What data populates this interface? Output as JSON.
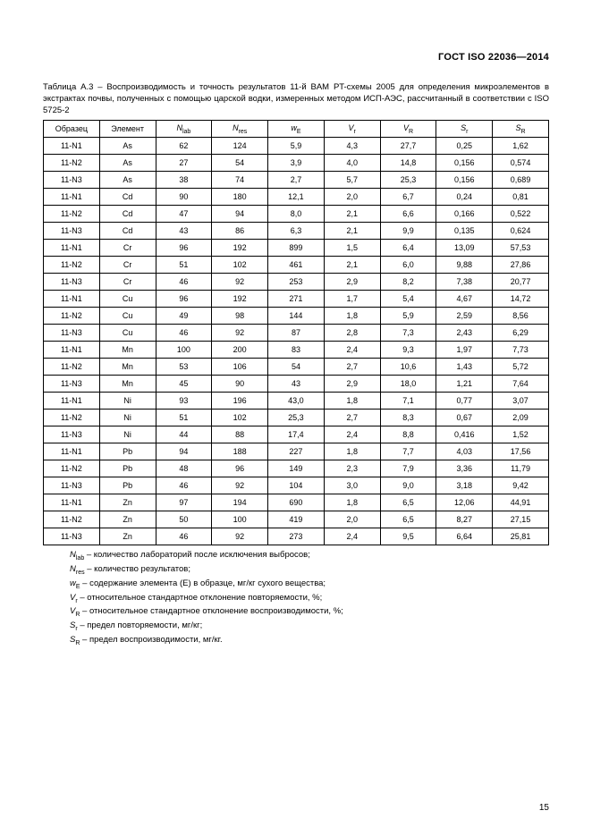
{
  "header": "ГОСТ ISO 22036—2014",
  "caption": "Таблица А.3 – Воспроизводимость и точность результатов 11-й BAM PT-схемы 2005 для определения микроэлементов в экстрактах почвы, полученных с помощью царской водки, измеренных методом ИСП-АЭС, рассчитанный в соответствии с ISO 5725-2",
  "table": {
    "columns": [
      "Образец",
      "Элемент",
      "Nlab",
      "Nres",
      "wE",
      "Vr",
      "VR",
      "Sr",
      "SR"
    ],
    "col_sub": [
      "",
      "",
      "lab",
      "res",
      "E",
      "r",
      "R",
      "r",
      "R"
    ],
    "col_base": [
      "Образец",
      "Элемент",
      "N",
      "N",
      "w",
      "V",
      "V",
      "S",
      "S"
    ],
    "col_italic": [
      false,
      false,
      true,
      true,
      true,
      true,
      true,
      true,
      true
    ],
    "rows": [
      [
        "11-N1",
        "As",
        "62",
        "124",
        "5,9",
        "4,3",
        "27,7",
        "0,25",
        "1,62"
      ],
      [
        "11-N2",
        "As",
        "27",
        "54",
        "3,9",
        "4,0",
        "14,8",
        "0,156",
        "0,574"
      ],
      [
        "11-N3",
        "As",
        "38",
        "74",
        "2,7",
        "5,7",
        "25,3",
        "0,156",
        "0,689"
      ],
      [
        "11-N1",
        "Cd",
        "90",
        "180",
        "12,1",
        "2,0",
        "6,7",
        "0,24",
        "0,81"
      ],
      [
        "11-N2",
        "Cd",
        "47",
        "94",
        "8,0",
        "2,1",
        "6,6",
        "0,166",
        "0,522"
      ],
      [
        "11-N3",
        "Cd",
        "43",
        "86",
        "6,3",
        "2,1",
        "9,9",
        "0,135",
        "0,624"
      ],
      [
        "11-N1",
        "Cr",
        "96",
        "192",
        "899",
        "1,5",
        "6,4",
        "13,09",
        "57,53"
      ],
      [
        "11-N2",
        "Cr",
        "51",
        "102",
        "461",
        "2,1",
        "6,0",
        "9,88",
        "27,86"
      ],
      [
        "11-N3",
        "Cr",
        "46",
        "92",
        "253",
        "2,9",
        "8,2",
        "7,38",
        "20,77"
      ],
      [
        "11-N1",
        "Cu",
        "96",
        "192",
        "271",
        "1,7",
        "5,4",
        "4,67",
        "14,72"
      ],
      [
        "11-N2",
        "Cu",
        "49",
        "98",
        "144",
        "1,8",
        "5,9",
        "2,59",
        "8,56"
      ],
      [
        "11-N3",
        "Cu",
        "46",
        "92",
        "87",
        "2,8",
        "7,3",
        "2,43",
        "6,29"
      ],
      [
        "11-N1",
        "Mn",
        "100",
        "200",
        "83",
        "2,4",
        "9,3",
        "1,97",
        "7,73"
      ],
      [
        "11-N2",
        "Mn",
        "53",
        "106",
        "54",
        "2,7",
        "10,6",
        "1,43",
        "5,72"
      ],
      [
        "11-N3",
        "Mn",
        "45",
        "90",
        "43",
        "2,9",
        "18,0",
        "1,21",
        "7,64"
      ],
      [
        "11-N1",
        "Ni",
        "93",
        "196",
        "43,0",
        "1,8",
        "7,1",
        "0,77",
        "3,07"
      ],
      [
        "11-N2",
        "Ni",
        "51",
        "102",
        "25,3",
        "2,7",
        "8,3",
        "0,67",
        "2,09"
      ],
      [
        "11-N3",
        "Ni",
        "44",
        "88",
        "17,4",
        "2,4",
        "8,8",
        "0,416",
        "1,52"
      ],
      [
        "11-N1",
        "Pb",
        "94",
        "188",
        "227",
        "1,8",
        "7,7",
        "4,03",
        "17,56"
      ],
      [
        "11-N2",
        "Pb",
        "48",
        "96",
        "149",
        "2,3",
        "7,9",
        "3,36",
        "11,79"
      ],
      [
        "11-N3",
        "Pb",
        "46",
        "92",
        "104",
        "3,0",
        "9,0",
        "3,18",
        "9,42"
      ],
      [
        "11-N1",
        "Zn",
        "97",
        "194",
        "690",
        "1,8",
        "6,5",
        "12,06",
        "44,91"
      ],
      [
        "11-N2",
        "Zn",
        "50",
        "100",
        "419",
        "2,0",
        "6,5",
        "8,27",
        "27,15"
      ],
      [
        "11-N3",
        "Zn",
        "46",
        "92",
        "273",
        "2,4",
        "9,5",
        "6,64",
        "25,81"
      ]
    ]
  },
  "legend": [
    {
      "sym": "N",
      "sub": "lab",
      "text": " – количество лабораторий после исключения выбросов;"
    },
    {
      "sym": "N",
      "sub": "res",
      "text": " – количество результатов;"
    },
    {
      "sym": "w",
      "sub": "E",
      "text": " – содержание элемента (Е) в образце, мг/кг сухого вещества;"
    },
    {
      "sym": "V",
      "sub": "r",
      "text": " – относительное стандартное отклонение повторяемости, %;"
    },
    {
      "sym": "V",
      "sub": "R",
      "text": " – относительное стандартное отклонение воспроизводимости, %;"
    },
    {
      "sym": "S",
      "sub": "r",
      "text": " – предел повторяемости, мг/кг;"
    },
    {
      "sym": "S",
      "sub": "R",
      "text": " – предел воспроизводимости, мг/кг."
    }
  ],
  "page_number": "15"
}
